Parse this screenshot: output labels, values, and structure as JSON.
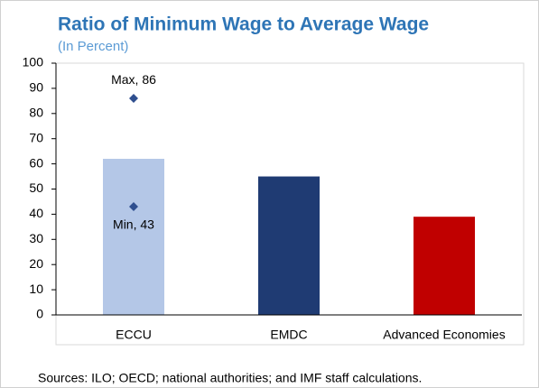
{
  "chart_data": {
    "type": "bar",
    "title": "Ratio of Minimum Wage to Average Wage",
    "subtitle": "(In Percent)",
    "categories": [
      "ECCU",
      "EMDC",
      "Advanced Economies"
    ],
    "values": [
      62,
      55,
      39
    ],
    "colors": [
      "#b4c7e7",
      "#1f3b73",
      "#c00000"
    ],
    "ylim": [
      0,
      100
    ],
    "yticks": [
      0,
      10,
      20,
      30,
      40,
      50,
      60,
      70,
      80,
      90,
      100
    ],
    "markers": [
      {
        "label": "Max, 86",
        "category": "ECCU",
        "value": 86,
        "color": "#2f4f8f"
      },
      {
        "label": "Min, 43",
        "category": "ECCU",
        "value": 43,
        "color": "#2f4f8f"
      }
    ],
    "note": "Sources: ILO; OECD; national authorities; and IMF staff calculations."
  }
}
